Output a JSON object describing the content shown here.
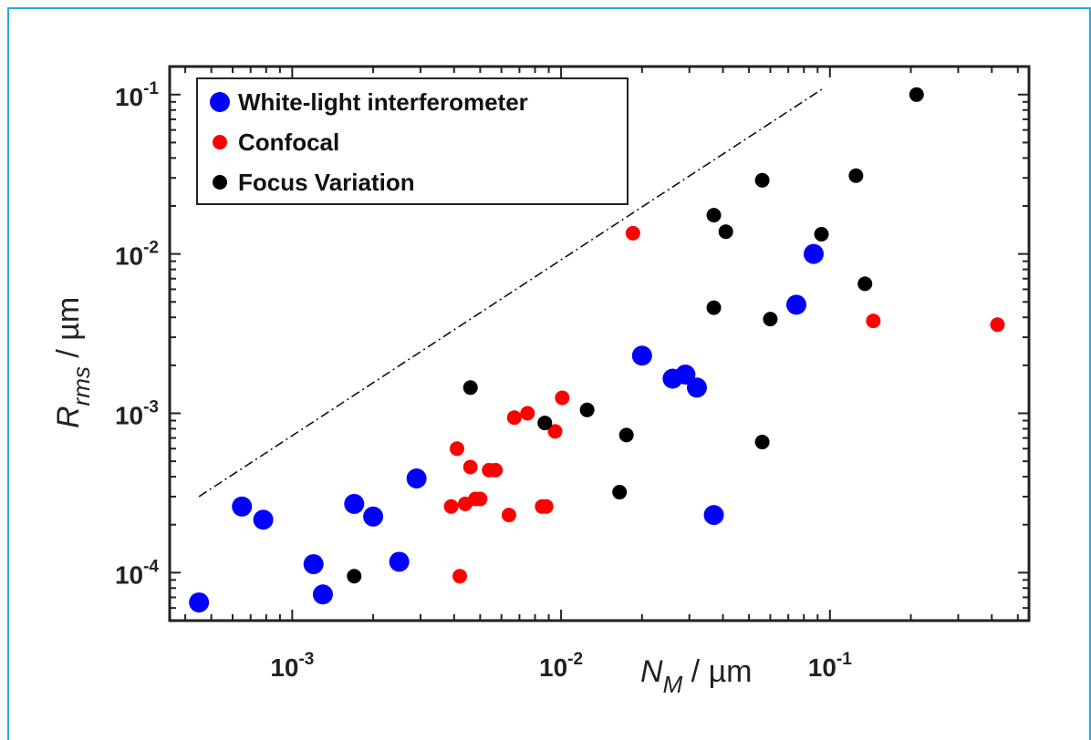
{
  "chart_data": {
    "type": "scatter",
    "x_scale": "log",
    "y_scale": "log",
    "xlim": [
      0.00035,
      0.55
    ],
    "ylim": [
      5e-05,
      0.15
    ],
    "x_ticks": [
      0.001,
      0.01,
      0.1
    ],
    "x_tick_labels": [
      {
        "base": "10",
        "exp": "-3"
      },
      {
        "base": "10",
        "exp": "-2"
      },
      {
        "base": "10",
        "exp": "-1"
      }
    ],
    "y_ticks": [
      0.0001,
      0.001,
      0.01,
      0.1
    ],
    "y_tick_labels": [
      {
        "base": "10",
        "exp": "-4"
      },
      {
        "base": "10",
        "exp": "-3"
      },
      {
        "base": "10",
        "exp": "-2"
      },
      {
        "base": "10",
        "exp": "-1"
      }
    ],
    "xlabel": {
      "main": "N",
      "sub": "M",
      "unit": " / µm"
    },
    "ylabel": {
      "main": "R",
      "sub": "rms",
      "unit": " / µm"
    },
    "grid": false,
    "legend_position": "top-left",
    "reference_line": {
      "style": "dash-dot",
      "points": [
        [
          0.00045,
          0.0003
        ],
        [
          0.095,
          0.11
        ]
      ]
    },
    "series": [
      {
        "name": "White-light interferometer",
        "color": "#0000ff",
        "points": [
          [
            0.00045,
            6.5e-05
          ],
          [
            0.00065,
            0.00026
          ],
          [
            0.00078,
            0.000215
          ],
          [
            0.0012,
            0.000113
          ],
          [
            0.0013,
            7.3e-05
          ],
          [
            0.0017,
            0.00027
          ],
          [
            0.002,
            0.000225
          ],
          [
            0.0025,
            0.000117
          ],
          [
            0.0029,
            0.00039
          ],
          [
            0.02,
            0.0023
          ],
          [
            0.026,
            0.00165
          ],
          [
            0.029,
            0.00175
          ],
          [
            0.032,
            0.00145
          ],
          [
            0.037,
            0.00023
          ],
          [
            0.075,
            0.0048
          ],
          [
            0.087,
            0.01
          ]
        ]
      },
      {
        "name": "Confocal",
        "color": "#ff0000",
        "points": [
          [
            0.0039,
            0.00026
          ],
          [
            0.0041,
            0.0006
          ],
          [
            0.0042,
            9.5e-05
          ],
          [
            0.0044,
            0.00027
          ],
          [
            0.0046,
            0.00046
          ],
          [
            0.0048,
            0.00029
          ],
          [
            0.005,
            0.00029
          ],
          [
            0.0054,
            0.00044
          ],
          [
            0.0057,
            0.00044
          ],
          [
            0.0064,
            0.00023
          ],
          [
            0.0067,
            0.00094
          ],
          [
            0.0075,
            0.001
          ],
          [
            0.0085,
            0.00026
          ],
          [
            0.0088,
            0.00026
          ],
          [
            0.0095,
            0.00077
          ],
          [
            0.0101,
            0.00125
          ],
          [
            0.0185,
            0.0135
          ],
          [
            0.145,
            0.0038
          ],
          [
            0.42,
            0.0036
          ]
        ]
      },
      {
        "name": "Focus Variation",
        "color": "#000000",
        "points": [
          [
            0.0017,
            9.5e-05
          ],
          [
            0.0046,
            0.00145
          ],
          [
            0.0087,
            0.00087
          ],
          [
            0.0125,
            0.00105
          ],
          [
            0.0165,
            0.00032
          ],
          [
            0.0175,
            0.00073
          ],
          [
            0.037,
            0.0175
          ],
          [
            0.037,
            0.0046
          ],
          [
            0.041,
            0.0138
          ],
          [
            0.056,
            0.029
          ],
          [
            0.056,
            0.00066
          ],
          [
            0.06,
            0.0039
          ],
          [
            0.093,
            0.0133
          ],
          [
            0.125,
            0.031
          ],
          [
            0.135,
            0.0065
          ],
          [
            0.21,
            0.1
          ]
        ]
      }
    ]
  }
}
